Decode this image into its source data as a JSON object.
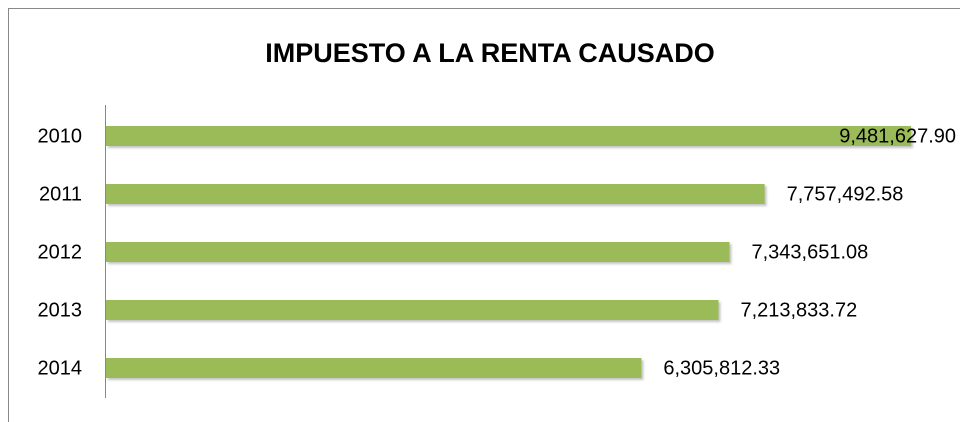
{
  "chart_data": {
    "type": "bar",
    "orientation": "horizontal",
    "title": "IMPUESTO A LA RENTA CAUSADO",
    "categories": [
      "2010",
      "2011",
      "2012",
      "2013",
      "2014"
    ],
    "values": [
      9481627.9,
      7757492.58,
      7343651.08,
      7213833.72,
      6305812.33
    ],
    "value_labels": [
      "9,481,627.90",
      "7,757,492.58",
      "7,343,651.08",
      "7,213,833.72",
      "6,305,812.33"
    ],
    "color": "#9bbb59"
  }
}
